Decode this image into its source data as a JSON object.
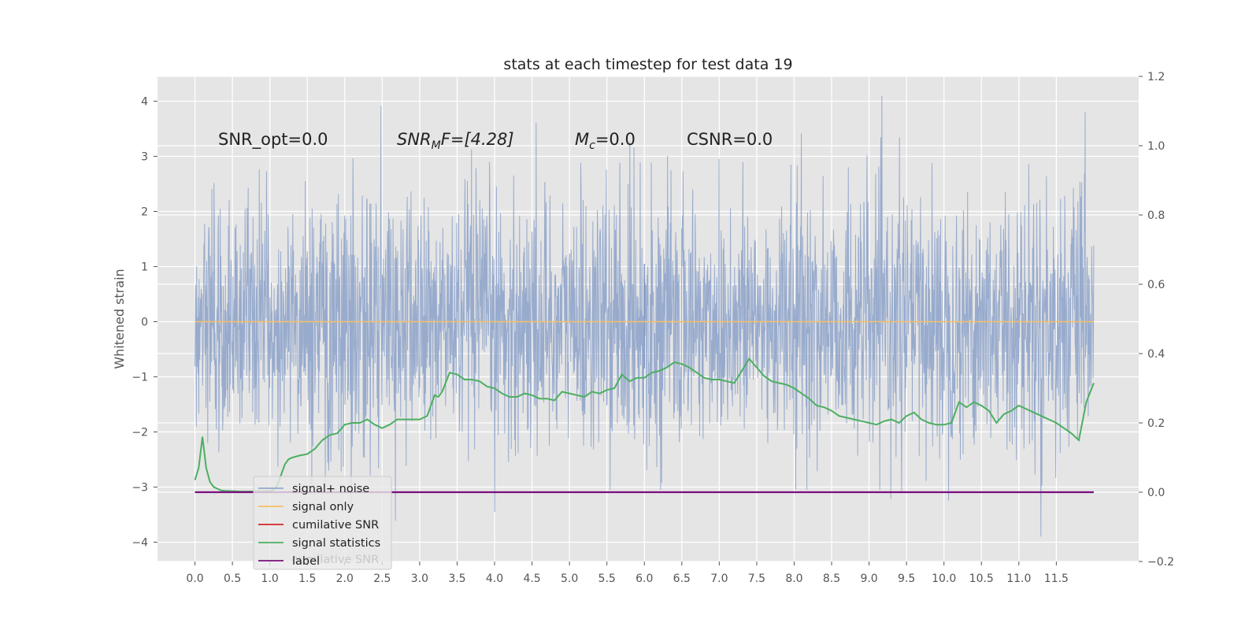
{
  "chart_data": {
    "type": "line",
    "title": "stats at each timestep for test data 19",
    "ylabel": "Whitened strain",
    "xlim": [
      -0.5,
      12.6
    ],
    "ylim": [
      -4.35,
      4.45
    ],
    "y2lim": [
      -0.2,
      1.2
    ],
    "grid": true,
    "legend_position": "lower-left",
    "x_ticks": [
      "0.0",
      "0.5",
      "1.0",
      "1.5",
      "2.0",
      "2.5",
      "3.0",
      "3.5",
      "4.0",
      "4.5",
      "5.0",
      "5.5",
      "6.0",
      "6.5",
      "7.0",
      "7.5",
      "8.0",
      "8.5",
      "9.0",
      "9.5",
      "10.0",
      "10.5",
      "11.0",
      "11.5"
    ],
    "y_ticks": [
      "4",
      "3",
      "2",
      "1",
      "0",
      "−1",
      "−2",
      "−3",
      "−4"
    ],
    "y2_ticks": [
      "1.2",
      "1.0",
      "0.8",
      "0.6",
      "0.4",
      "0.2",
      "0.0",
      "−0.2"
    ],
    "annotations": {
      "snr_opt": "SNR_opt=0.0",
      "snr_mf_base": "SNR",
      "snr_mf_sub": "M",
      "snr_mf_tail": "F=[4.28]",
      "mc_base": "M",
      "mc_sub": "c",
      "mc_tail": "=0.0",
      "csnr": "CSNR=0.0"
    },
    "series": [
      {
        "name": "signal+ noise",
        "color": "#94a8cb",
        "axis": "left",
        "x_range": [
          0.0,
          12.0
        ],
        "approx_range": [
          -3.9,
          4.1
        ],
        "description_values": "noise band mostly between -2.4 and 2.4 with peaks to ±4; vertical spike at 6.0 reaching 1.0"
      },
      {
        "name": "signal only",
        "color": "#f5c066",
        "axis": "left",
        "x": [
          0.0,
          12.0
        ],
        "y": [
          0.0,
          0.0
        ]
      },
      {
        "name": "cumilative SNR",
        "color": "#d62728",
        "axis": "right",
        "x": [],
        "y": []
      },
      {
        "name": "signal statistics",
        "color": "#4caf60",
        "axis": "right",
        "x": [
          0.0,
          0.05,
          0.1,
          0.15,
          0.2,
          0.25,
          0.3,
          0.35,
          0.4,
          0.5,
          0.6,
          0.7,
          0.8,
          0.9,
          1.0,
          1.05,
          1.1,
          1.15,
          1.2,
          1.25,
          1.3,
          1.35,
          1.4,
          1.5,
          1.6,
          1.7,
          1.8,
          1.9,
          2.0,
          2.1,
          2.2,
          2.3,
          2.4,
          2.5,
          2.6,
          2.7,
          2.8,
          2.9,
          3.0,
          3.1,
          3.2,
          3.25,
          3.3,
          3.4,
          3.5,
          3.6,
          3.7,
          3.8,
          3.9,
          4.0,
          4.1,
          4.2,
          4.3,
          4.4,
          4.5,
          4.6,
          4.7,
          4.8,
          4.9,
          5.0,
          5.1,
          5.2,
          5.3,
          5.4,
          5.5,
          5.6,
          5.7,
          5.8,
          5.9,
          6.0,
          6.1,
          6.2,
          6.3,
          6.4,
          6.5,
          6.6,
          6.7,
          6.8,
          6.9,
          7.0,
          7.1,
          7.2,
          7.3,
          7.4,
          7.5,
          7.6,
          7.7,
          7.8,
          7.9,
          8.0,
          8.1,
          8.2,
          8.3,
          8.4,
          8.5,
          8.6,
          8.7,
          8.8,
          8.9,
          9.0,
          9.1,
          9.2,
          9.3,
          9.4,
          9.5,
          9.6,
          9.7,
          9.8,
          9.9,
          10.0,
          10.1,
          10.2,
          10.3,
          10.4,
          10.5,
          10.6,
          10.7,
          10.8,
          10.9,
          11.0,
          11.1,
          11.2,
          11.3,
          11.4,
          11.5,
          11.6,
          11.7,
          11.8,
          11.9,
          12.0
        ],
        "y": [
          0.035,
          0.07,
          0.16,
          0.07,
          0.03,
          0.015,
          0.01,
          0.005,
          0.004,
          0.003,
          0.002,
          0.002,
          0.002,
          0.003,
          0.003,
          0.006,
          0.02,
          0.05,
          0.08,
          0.095,
          0.1,
          0.103,
          0.106,
          0.11,
          0.125,
          0.15,
          0.165,
          0.17,
          0.195,
          0.2,
          0.2,
          0.21,
          0.195,
          0.185,
          0.195,
          0.21,
          0.21,
          0.21,
          0.21,
          0.22,
          0.28,
          0.275,
          0.29,
          0.345,
          0.34,
          0.325,
          0.325,
          0.32,
          0.305,
          0.3,
          0.285,
          0.275,
          0.275,
          0.285,
          0.28,
          0.27,
          0.27,
          0.265,
          0.29,
          0.285,
          0.28,
          0.275,
          0.29,
          0.285,
          0.295,
          0.3,
          0.34,
          0.32,
          0.33,
          0.33,
          0.345,
          0.35,
          0.36,
          0.375,
          0.37,
          0.36,
          0.345,
          0.33,
          0.325,
          0.325,
          0.32,
          0.315,
          0.35,
          0.385,
          0.36,
          0.335,
          0.32,
          0.315,
          0.31,
          0.3,
          0.285,
          0.27,
          0.25,
          0.245,
          0.235,
          0.22,
          0.215,
          0.21,
          0.205,
          0.2,
          0.195,
          0.205,
          0.21,
          0.2,
          0.22,
          0.23,
          0.21,
          0.2,
          0.195,
          0.195,
          0.2,
          0.26,
          0.245,
          0.26,
          0.25,
          0.235,
          0.2,
          0.225,
          0.235,
          0.25,
          0.24,
          0.23,
          0.22,
          0.21,
          0.2,
          0.185,
          0.17,
          0.15,
          0.26,
          0.315
        ]
      },
      {
        "name": "label",
        "color": "#7b0f7e",
        "axis": "right",
        "x": [
          0.0,
          12.0
        ],
        "y": [
          0.0,
          0.0
        ]
      }
    ],
    "legend_overlap_text": "cumilative SNR"
  }
}
